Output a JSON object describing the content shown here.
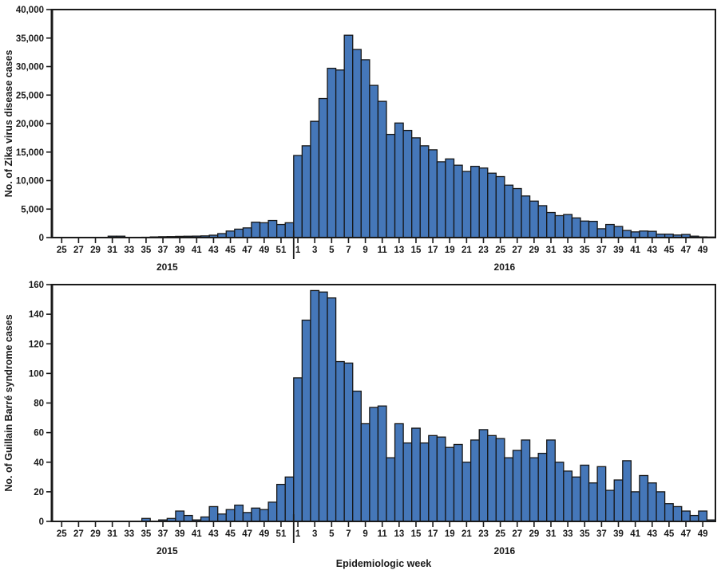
{
  "figure": {
    "xlabel": "Epidemiologic week",
    "year_labels": [
      "2015",
      "2016"
    ],
    "bar_fill": "#4577b9",
    "bar_stroke": "#161616",
    "axis_color": "#1a1a1a"
  },
  "chart_data": [
    {
      "type": "bar",
      "title": "",
      "ylabel": "No. of Zika virus disease cases",
      "ylim": [
        0,
        40000
      ],
      "ytick_step": 5000,
      "ytick_labels": [
        "0",
        "5,000",
        "10,000",
        "15,000",
        "20,000",
        "25,000",
        "30,000",
        "35,000",
        "40,000"
      ],
      "x_week_start_2015": 25,
      "x_week_end_2015": 52,
      "x_week_start_2016": 1,
      "x_week_end_2016": 50,
      "xtick_labels_2015": [
        25,
        27,
        29,
        31,
        33,
        35,
        37,
        39,
        41,
        43,
        45,
        47,
        49,
        51
      ],
      "xtick_labels_2016": [
        1,
        3,
        5,
        7,
        9,
        11,
        13,
        15,
        17,
        19,
        21,
        23,
        25,
        27,
        29,
        31,
        33,
        35,
        37,
        39,
        41,
        43,
        45,
        47,
        49
      ],
      "values_2015": [
        10,
        10,
        15,
        15,
        20,
        20,
        250,
        250,
        40,
        50,
        60,
        120,
        160,
        180,
        220,
        240,
        260,
        300,
        420,
        700,
        1150,
        1480,
        1700,
        2700,
        2600,
        3000,
        2300,
        2600
      ],
      "values_2016": [
        14400,
        16100,
        20400,
        24400,
        29700,
        29400,
        35500,
        33000,
        31200,
        26700,
        23900,
        18100,
        20100,
        18800,
        17500,
        16100,
        15400,
        13300,
        13800,
        12700,
        11600,
        12500,
        12200,
        11300,
        10700,
        9200,
        8600,
        7300,
        6400,
        5600,
        4400,
        3850,
        4050,
        3450,
        2900,
        2850,
        1550,
        2300,
        1950,
        1250,
        1000,
        1150,
        1100,
        600,
        600,
        450,
        550,
        250,
        120,
        100
      ],
      "legend": "none",
      "grid": "off"
    },
    {
      "type": "bar",
      "title": "",
      "ylabel": "No. of Guillain Barré syndrome cases",
      "ylim": [
        0,
        160
      ],
      "ytick_step": 20,
      "ytick_labels": [
        "0",
        "20",
        "40",
        "60",
        "80",
        "100",
        "120",
        "140",
        "160"
      ],
      "x_week_start_2015": 25,
      "x_week_end_2015": 52,
      "x_week_start_2016": 1,
      "x_week_end_2016": 50,
      "xtick_labels_2015": [
        25,
        27,
        29,
        31,
        33,
        35,
        37,
        39,
        41,
        43,
        45,
        47,
        49,
        51
      ],
      "xtick_labels_2016": [
        1,
        3,
        5,
        7,
        9,
        11,
        13,
        15,
        17,
        19,
        21,
        23,
        25,
        27,
        29,
        31,
        33,
        35,
        37,
        39,
        41,
        43,
        45,
        47,
        49
      ],
      "values_2015": [
        0,
        0,
        0,
        0,
        0,
        0,
        0,
        0,
        0,
        0,
        2,
        0,
        1,
        2,
        7,
        4,
        1,
        3,
        10,
        5,
        8,
        11,
        6,
        9,
        8,
        13,
        25,
        30
      ],
      "values_2016": [
        97,
        136,
        156,
        155,
        151,
        108,
        107,
        88,
        66,
        77,
        78,
        43,
        66,
        53,
        63,
        53,
        58,
        57,
        50,
        52,
        40,
        55,
        62,
        58,
        56,
        43,
        48,
        55,
        43,
        46,
        55,
        40,
        34,
        30,
        38,
        26,
        37,
        21,
        28,
        41,
        20,
        31,
        26,
        20,
        12,
        10,
        7,
        4,
        7,
        1
      ],
      "legend": "none",
      "grid": "off"
    }
  ]
}
